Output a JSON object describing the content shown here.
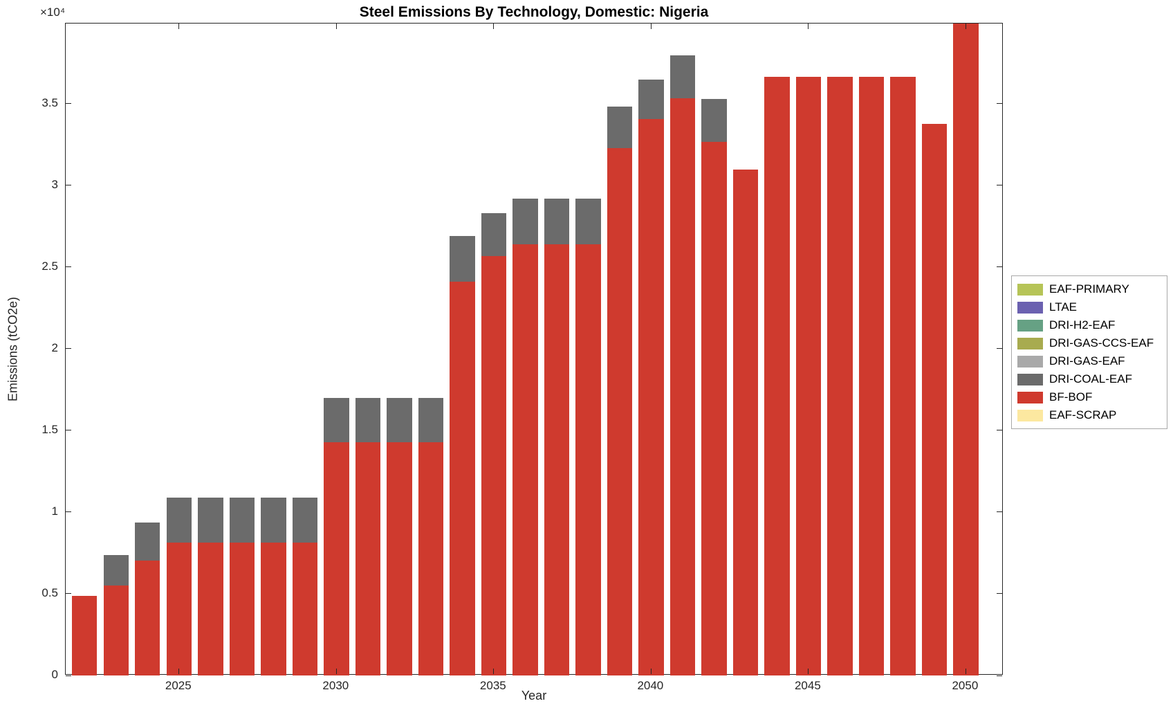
{
  "chart_data": {
    "type": "bar",
    "stacked": true,
    "title": "Steel Emissions By Technology, Domestic: Nigeria",
    "xlabel": "Year",
    "ylabel": "Emissions (tCO2e)",
    "y_multiplier_label": "×10⁴",
    "xlim": [
      2021.4,
      2051.2
    ],
    "ylim": [
      0,
      39900
    ],
    "bar_width_fraction": 0.8,
    "grid": false,
    "x": [
      2022,
      2023,
      2024,
      2025,
      2026,
      2027,
      2028,
      2029,
      2030,
      2031,
      2032,
      2033,
      2034,
      2035,
      2036,
      2037,
      2038,
      2039,
      2040,
      2041,
      2042,
      2043,
      2044,
      2045,
      2046,
      2047,
      2048,
      2049,
      2050
    ],
    "xticks": [
      2025,
      2030,
      2035,
      2040,
      2045,
      2050
    ],
    "yticks": [
      0,
      5000,
      10000,
      15000,
      20000,
      25000,
      30000,
      35000
    ],
    "ytick_labels": [
      "0",
      "0.5",
      "1",
      "1.5",
      "2",
      "2.5",
      "3",
      "3.5"
    ],
    "series": [
      {
        "name": "BF-BOF",
        "color": "#cf3a2e",
        "values": [
          4890,
          5510,
          7030,
          8150,
          8150,
          8150,
          8150,
          8150,
          14270,
          14270,
          14270,
          14270,
          24100,
          25670,
          26380,
          26380,
          26380,
          32260,
          34070,
          35320,
          32670,
          30960,
          36640,
          36640,
          36640,
          36640,
          36640,
          33750,
          39900
        ]
      },
      {
        "name": "DRI-COAL-EAF",
        "color": "#6b6b6b",
        "values": [
          0,
          1860,
          2330,
          2730,
          2730,
          2730,
          2730,
          2730,
          2720,
          2720,
          2720,
          2720,
          2800,
          2620,
          2800,
          2800,
          2800,
          2540,
          2380,
          2630,
          2610,
          0,
          0,
          0,
          0,
          0,
          0,
          0,
          0
        ]
      }
    ],
    "legend": {
      "position": "right-outside",
      "entries": [
        {
          "label": "EAF-PRIMARY",
          "color": "#b6c457"
        },
        {
          "label": "LTAE",
          "color": "#6b61b0"
        },
        {
          "label": "DRI-H2-EAF",
          "color": "#66a184"
        },
        {
          "label": "DRI-GAS-CCS-EAF",
          "color": "#a8ab4f"
        },
        {
          "label": "DRI-GAS-EAF",
          "color": "#a9a9a9"
        },
        {
          "label": "DRI-COAL-EAF",
          "color": "#6b6b6b"
        },
        {
          "label": "BF-BOF",
          "color": "#cf3a2e"
        },
        {
          "label": "EAF-SCRAP",
          "color": "#fce8a0"
        }
      ]
    }
  }
}
